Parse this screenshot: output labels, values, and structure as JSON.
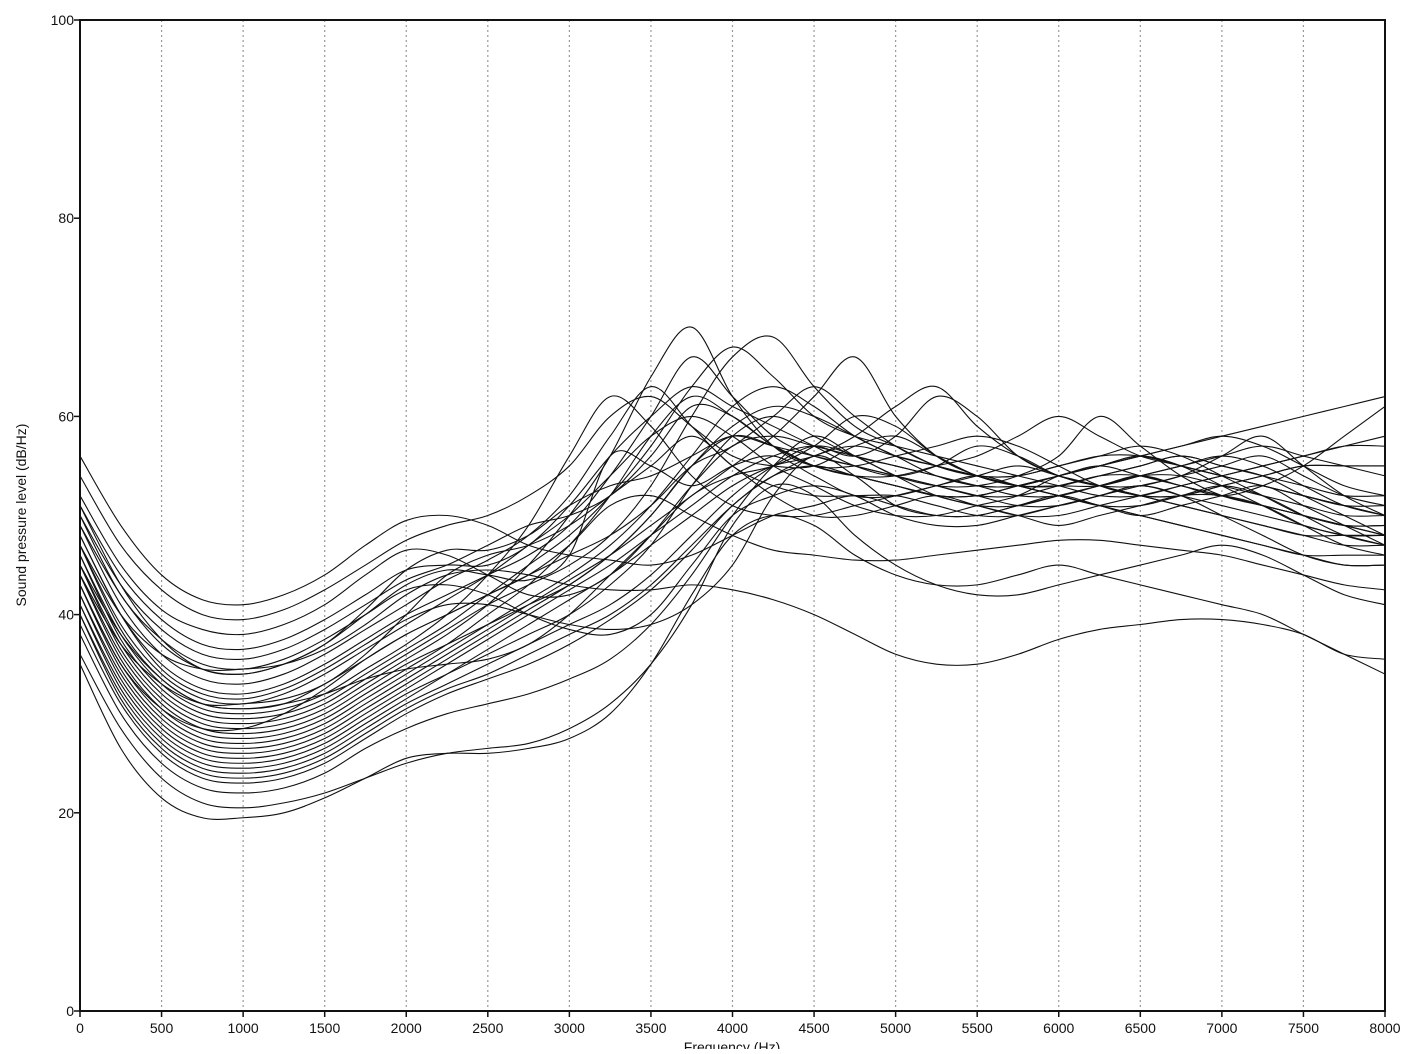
{
  "chart_data": {
    "type": "line",
    "title": "",
    "xlabel": "Frequency (Hz)",
    "ylabel": "Sound pressure level (dB/Hz)",
    "xlim": [
      0,
      8000
    ],
    "ylim": [
      0,
      100
    ],
    "x_ticks": [
      "0",
      "500",
      "1000",
      "1500",
      "2000",
      "2500",
      "3000",
      "3500",
      "4000",
      "4500",
      "5000",
      "5500",
      "6000",
      "6500",
      "7000",
      "7500",
      "8000"
    ],
    "y_ticks": [
      "0",
      "20",
      "40",
      "60",
      "80",
      "100"
    ],
    "vertical_grid": true,
    "grid_style": "dotted",
    "line_color": "#111111",
    "x": [
      0,
      250,
      500,
      750,
      1000,
      1250,
      1500,
      1750,
      2000,
      2250,
      2500,
      2750,
      3000,
      3250,
      3500,
      3750,
      4000,
      4250,
      4500,
      4750,
      5000,
      5250,
      5500,
      5750,
      6000,
      6250,
      6500,
      6750,
      7000,
      7250,
      7500,
      7750,
      8000
    ],
    "series": [
      {
        "values": [
          56,
          49,
          44,
          41.5,
          41,
          42,
          44,
          47,
          49.5,
          50,
          49,
          47,
          46,
          45.5,
          45,
          46,
          48,
          50,
          51,
          52,
          51,
          50,
          50,
          51,
          52,
          51,
          50,
          49,
          48,
          47,
          46,
          46,
          46
        ]
      },
      {
        "values": [
          54,
          47,
          42.5,
          40,
          39.5,
          40.5,
          42.5,
          45,
          47.5,
          49,
          50,
          52,
          55,
          60,
          62,
          59,
          56,
          55,
          55,
          57,
          58,
          56,
          54,
          53,
          53,
          53,
          54,
          55,
          56,
          55,
          53,
          51,
          50
        ]
      },
      {
        "values": [
          52,
          45,
          40.5,
          38.5,
          38,
          39,
          41,
          44,
          46.5,
          46,
          44,
          42,
          42,
          44,
          48,
          53,
          57,
          58,
          57,
          56,
          55,
          54,
          53,
          52,
          52,
          53,
          54,
          54,
          53,
          52,
          51,
          50,
          50
        ]
      },
      {
        "values": [
          51,
          44,
          39.5,
          37,
          36.5,
          37.5,
          39.5,
          42,
          44.5,
          45,
          45,
          47,
          51,
          56,
          60,
          63,
          61,
          59,
          57,
          55,
          54,
          55,
          57,
          56,
          54,
          53,
          53,
          54,
          55,
          56,
          54,
          52,
          51
        ]
      },
      {
        "values": [
          50,
          43,
          38.5,
          36,
          35.5,
          36.5,
          38.5,
          41,
          43.5,
          45,
          47,
          49,
          50,
          52,
          56,
          61,
          60,
          57,
          55,
          54,
          53,
          52,
          52,
          53,
          54,
          55,
          56,
          57,
          58,
          59,
          60,
          61,
          62
        ]
      },
      {
        "values": [
          50,
          42,
          37.5,
          35,
          34.5,
          35.5,
          37.5,
          40,
          42.5,
          43,
          42,
          40,
          38.5,
          38,
          40,
          45,
          50,
          52,
          53,
          52,
          50,
          49,
          49,
          50,
          51,
          52,
          53,
          52,
          51,
          50,
          49,
          48,
          48
        ]
      },
      {
        "values": [
          49,
          41,
          36,
          33.5,
          33,
          34,
          36,
          38.5,
          41,
          43.5,
          45.5,
          48,
          52,
          58,
          63,
          59,
          55,
          53,
          52,
          52,
          52,
          51,
          50,
          50,
          51,
          52,
          53,
          52,
          50,
          48,
          46,
          45,
          45
        ]
      },
      {
        "values": [
          48,
          40,
          35,
          32.5,
          32,
          33,
          35,
          37.5,
          40,
          42,
          44,
          46,
          49,
          54,
          60,
          66,
          62,
          58,
          56,
          55,
          54,
          53,
          52,
          52,
          53,
          54,
          55,
          56,
          55,
          54,
          52,
          50,
          48
        ]
      },
      {
        "values": [
          48,
          40,
          34.5,
          32,
          31.5,
          32.5,
          34.5,
          37,
          39.5,
          41,
          41,
          40,
          39,
          38.5,
          39,
          41,
          45,
          52,
          56,
          54,
          51,
          50,
          50,
          51,
          52,
          53,
          54,
          55,
          56,
          57,
          56,
          55,
          54
        ]
      },
      {
        "values": [
          47,
          39,
          34,
          31.5,
          31,
          32,
          34,
          36.5,
          39,
          41.5,
          44,
          47,
          50,
          54,
          58,
          60,
          58,
          55,
          53,
          51,
          50,
          50,
          51,
          52,
          54,
          55,
          56,
          55,
          53,
          51,
          49,
          48,
          47
        ]
      },
      {
        "values": [
          47,
          38.5,
          33.5,
          31,
          30.5,
          31,
          33,
          35.5,
          38,
          40,
          42,
          44,
          46,
          48,
          51,
          55,
          57,
          60,
          63,
          60,
          57,
          55,
          54,
          54,
          55,
          56,
          57,
          56,
          54,
          52,
          50,
          49,
          48
        ]
      },
      {
        "values": [
          46,
          38,
          33,
          30.5,
          30,
          30.5,
          32,
          34.5,
          37,
          40,
          44,
          49,
          56,
          62,
          59,
          54,
          51,
          50,
          50,
          51,
          52,
          53,
          54,
          55,
          54,
          53,
          52,
          51,
          50,
          49,
          48,
          47,
          47
        ]
      },
      {
        "values": [
          46,
          37.5,
          32.5,
          30,
          29.5,
          30,
          31.5,
          34,
          36.5,
          39,
          42,
          45,
          48,
          52,
          57,
          63,
          67,
          64,
          60,
          58,
          57,
          56,
          55,
          54,
          53,
          52,
          52,
          53,
          54,
          55,
          56,
          57,
          57
        ]
      },
      {
        "values": [
          45,
          37,
          32,
          29.5,
          29,
          29.5,
          31,
          33.5,
          36,
          38.5,
          41,
          43,
          45,
          48,
          53,
          60,
          66,
          68,
          63,
          59,
          57,
          55,
          54,
          53,
          53,
          54,
          54,
          53,
          52,
          51,
          50,
          49,
          49
        ]
      },
      {
        "values": [
          45,
          36.5,
          31.5,
          29,
          28.5,
          29,
          30.5,
          33,
          35.5,
          38,
          41,
          45,
          50,
          56,
          64,
          69,
          62,
          57,
          55,
          55,
          56,
          57,
          58,
          57,
          55,
          53,
          52,
          52,
          53,
          54,
          55,
          55,
          55
        ]
      },
      {
        "values": [
          44,
          36,
          31,
          28.5,
          28,
          28.5,
          30,
          32.5,
          35,
          37,
          39,
          41,
          43,
          46,
          50,
          55,
          59,
          61,
          60,
          58,
          56,
          55,
          54,
          54,
          55,
          56,
          56,
          55,
          54,
          53,
          52,
          51,
          51
        ]
      },
      {
        "values": [
          44,
          35.5,
          30.5,
          28,
          27.5,
          28,
          29.5,
          32,
          34.5,
          37,
          40,
          43,
          47,
          52,
          58,
          62,
          60,
          57,
          55,
          54,
          54,
          55,
          56,
          58,
          60,
          58,
          56,
          55,
          54,
          53,
          52,
          51,
          50
        ]
      },
      {
        "values": [
          43,
          35,
          30,
          27.5,
          27,
          27.5,
          29,
          31.5,
          34,
          36.5,
          39,
          41.5,
          44,
          47,
          51,
          56,
          61,
          63,
          61,
          58,
          56,
          54,
          53,
          53,
          54,
          55,
          56,
          55,
          54,
          53,
          52,
          51,
          50
        ]
      },
      {
        "values": [
          43,
          34.5,
          29.5,
          27,
          26.5,
          27,
          28.5,
          31,
          33.5,
          36,
          38.5,
          41,
          43.5,
          46,
          49,
          52,
          55,
          58,
          62,
          66,
          60,
          56,
          54,
          53,
          53,
          54,
          55,
          56,
          55,
          54,
          53,
          52,
          52
        ]
      },
      {
        "values": [
          42,
          34,
          29,
          26.5,
          26,
          26.5,
          28,
          30.5,
          33,
          35.5,
          38,
          40.5,
          43,
          46,
          50,
          55,
          58,
          57,
          55,
          54,
          53,
          52,
          51,
          51,
          52,
          53,
          54,
          53,
          52,
          51,
          50,
          49,
          48
        ]
      },
      {
        "values": [
          42,
          33.5,
          28.5,
          26,
          25.5,
          26,
          27.5,
          30,
          32.5,
          35,
          37.5,
          40,
          42.5,
          45,
          48,
          51,
          54,
          56,
          57,
          56,
          58,
          62,
          60,
          56,
          54,
          53,
          52,
          52,
          53,
          54,
          55,
          55,
          55
        ]
      },
      {
        "values": [
          41,
          33,
          28,
          25.5,
          25,
          25.5,
          27,
          29.5,
          32,
          34,
          36,
          38,
          40,
          43,
          47,
          53,
          58,
          60,
          58,
          56,
          55,
          54,
          53,
          53,
          54,
          55,
          56,
          57,
          58,
          57,
          55,
          53,
          52
        ]
      },
      {
        "values": [
          41,
          32.5,
          27.5,
          25,
          24.5,
          25,
          26.5,
          29,
          31.5,
          34,
          36.5,
          39,
          41.5,
          44,
          47,
          50,
          53,
          55,
          56,
          58,
          61,
          63,
          59,
          56,
          54,
          53,
          52,
          51,
          50,
          49,
          48,
          48,
          48
        ]
      },
      {
        "values": [
          40,
          32,
          27,
          24.5,
          24,
          24.5,
          26,
          28.5,
          31,
          33,
          35,
          37,
          39,
          41,
          44,
          48,
          52,
          55,
          57,
          56,
          54,
          53,
          53,
          54,
          56,
          60,
          57,
          54,
          52,
          51,
          50,
          49,
          49
        ]
      },
      {
        "values": [
          40,
          31.5,
          26.5,
          24,
          23.5,
          24,
          25.5,
          28,
          30.5,
          32.5,
          34,
          36,
          38,
          40,
          43,
          47,
          51,
          54,
          55,
          54,
          53,
          52,
          52,
          53,
          54,
          55,
          54,
          53,
          52,
          53,
          55,
          58,
          61
        ]
      },
      {
        "values": [
          39,
          31,
          26,
          23.5,
          23,
          23.5,
          25,
          27.5,
          30,
          32,
          33.5,
          35,
          37,
          39.5,
          42.5,
          46.5,
          51,
          54,
          56,
          57,
          56,
          55,
          54,
          53,
          52,
          51,
          50,
          49,
          48,
          47,
          46,
          45,
          45
        ]
      },
      {
        "values": [
          38,
          30,
          25,
          22.5,
          22,
          22.5,
          24,
          26.5,
          28.5,
          30,
          31,
          32,
          33.5,
          35.5,
          39,
          44,
          50,
          55,
          58,
          56,
          54,
          52,
          51,
          50,
          50,
          51,
          52,
          53,
          54,
          55,
          56,
          57,
          58
        ]
      },
      {
        "values": [
          36,
          28.5,
          23.5,
          21,
          20.5,
          21,
          22,
          23.5,
          25,
          26,
          26.5,
          27,
          28.5,
          31,
          35,
          41,
          49,
          53,
          52,
          48,
          45,
          43,
          42,
          42,
          43,
          44,
          45,
          46,
          47,
          46,
          44,
          42,
          41
        ]
      },
      {
        "values": [
          35,
          26.5,
          21.5,
          19.5,
          19.5,
          20,
          21.5,
          23.5,
          25.5,
          26,
          26,
          26.5,
          27.5,
          30,
          35,
          42,
          48,
          50,
          49,
          46,
          44,
          43,
          43,
          44,
          45,
          44,
          43,
          42,
          41,
          40,
          38,
          36,
          34
        ]
      },
      {
        "values": [
          47,
          40,
          36,
          34.5,
          34.5,
          35,
          36.5,
          39,
          42,
          44,
          44.5,
          44,
          43,
          42.5,
          42.5,
          43,
          42.5,
          41.5,
          40,
          38,
          36,
          35,
          35,
          36,
          37.5,
          38.5,
          39,
          39.5,
          39.5,
          39,
          38,
          36,
          35.5
        ]
      },
      {
        "values": [
          49,
          42,
          37,
          34.5,
          34,
          35,
          37,
          40,
          43,
          44.5,
          44,
          43.5,
          46,
          56,
          55,
          53,
          55,
          56,
          54,
          52,
          52,
          53,
          54,
          53,
          52,
          51,
          50,
          51,
          52,
          53,
          51,
          49,
          47
        ]
      },
      {
        "values": [
          44,
          37,
          33,
          31,
          31,
          31.5,
          33,
          36,
          40,
          44,
          46,
          47,
          49,
          52,
          55,
          58,
          55,
          52,
          50,
          50,
          51,
          52,
          51,
          50,
          49,
          50,
          51,
          52,
          52,
          51,
          49,
          47,
          46
        ]
      },
      {
        "values": [
          45,
          38,
          33.5,
          31,
          30.5,
          31,
          32,
          33.5,
          34.5,
          35,
          35.5,
          37,
          40,
          44,
          48,
          52,
          54,
          55,
          57,
          60,
          59,
          56,
          54,
          53,
          52,
          51,
          51,
          52,
          53,
          52,
          50,
          48,
          47
        ]
      },
      {
        "values": [
          51,
          43,
          37.5,
          34.5,
          34,
          35,
          37,
          40.5,
          44.5,
          46.5,
          46.5,
          48,
          51,
          53,
          54,
          56,
          58,
          57,
          56,
          55,
          54,
          53,
          52,
          51,
          51,
          52,
          53,
          54,
          56,
          58,
          55,
          52,
          50
        ]
      },
      {
        "values": [
          43,
          35,
          30.5,
          28.5,
          28.5,
          30,
          32.5,
          35.5,
          38,
          40,
          42,
          44,
          47,
          51,
          52,
          50,
          48,
          46.5,
          46,
          45.5,
          45.5,
          46,
          46.5,
          47,
          47.5,
          47.5,
          47,
          46.5,
          46,
          45,
          44,
          43,
          42.5
        ]
      }
    ]
  }
}
